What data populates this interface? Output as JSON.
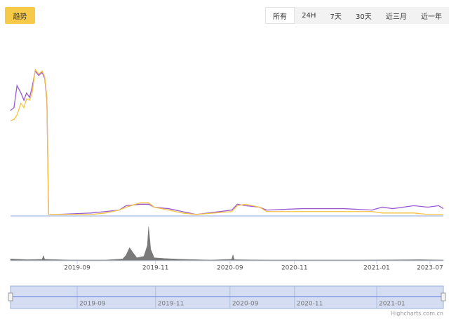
{
  "header": {
    "trend_button": "趋势",
    "range_buttons": [
      "所有",
      "24H",
      "7天",
      "30天",
      "近三月",
      "近一年"
    ]
  },
  "chart_data": {
    "type": "line",
    "xlim": [
      0,
      100
    ],
    "ylim": [
      0,
      102
    ],
    "y2lim": [
      0,
      100
    ],
    "x": [
      0,
      0.8,
      1.5,
      2.4,
      3.1,
      3.7,
      4.4,
      5.0,
      5.7,
      6.5,
      7.3,
      7.9,
      8.4,
      8.8,
      10.5,
      18.6,
      21.9,
      25.1,
      26.7,
      30.0,
      31.9,
      33.2,
      36.5,
      39.7,
      42.9,
      51.1,
      52.4,
      54.3,
      57.5,
      59.2,
      67.3,
      77.0,
      83.5,
      85.9,
      88.3,
      93.2,
      96.4,
      98.9,
      100
    ],
    "series": [
      {
        "color": "#9b59d0",
        "values": [
          72,
          74,
          89,
          84,
          79,
          84,
          81,
          88,
          99,
          96,
          98,
          94,
          79,
          1,
          1,
          2,
          3,
          4,
          7,
          8,
          8,
          6,
          5,
          3,
          1,
          4,
          8,
          7,
          6,
          4,
          5,
          5,
          4,
          6,
          5,
          7,
          6,
          7,
          5
        ]
      },
      {
        "color": "#f5c242",
        "values": [
          65,
          66,
          69,
          77,
          74,
          80,
          79,
          84,
          100,
          97,
          99,
          95,
          81,
          1,
          1,
          1,
          2,
          4,
          6,
          9,
          9,
          6,
          4,
          2,
          1,
          3,
          7,
          8,
          6,
          3,
          3,
          3,
          3,
          2,
          2,
          2,
          1,
          1,
          1
        ]
      }
    ],
    "volume": {
      "type": "area",
      "axis": "y2",
      "color": "#7a7a7a",
      "x": [
        0,
        4.0,
        7.3,
        7.6,
        7.9,
        13.8,
        21.9,
        25.9,
        26.7,
        27.5,
        28.4,
        29.2,
        30.8,
        31.6,
        31.9,
        32.4,
        33.2,
        35.7,
        39.7,
        46.2,
        51.1,
        51.4,
        51.7,
        59.2,
        70.5,
        81.8,
        94.8,
        100
      ],
      "values": [
        5,
        3,
        4,
        14,
        4,
        2,
        2,
        5,
        15,
        35,
        20,
        8,
        12,
        40,
        90,
        30,
        8,
        6,
        4,
        2,
        4,
        16,
        3,
        2,
        2,
        2,
        3,
        2
      ]
    },
    "xticks": [
      {
        "value": 15.4,
        "label": "2019-09"
      },
      {
        "value": 33.5,
        "label": "2019-11"
      },
      {
        "value": 50.7,
        "label": "2020-09"
      },
      {
        "value": 65.6,
        "label": "2020-11"
      },
      {
        "value": 84.6,
        "label": "2021-01"
      },
      {
        "value": 96.9,
        "label": "2023-07"
      }
    ],
    "navigator_xticks": [
      {
        "value": 15.4,
        "label": "2019-09"
      },
      {
        "value": 33.5,
        "label": "2019-11"
      },
      {
        "value": 50.7,
        "label": "2020-09"
      },
      {
        "value": 65.6,
        "label": "2020-11"
      },
      {
        "value": 84.6,
        "label": "2021-01"
      }
    ],
    "credits": "Highcharts.com.cn"
  }
}
